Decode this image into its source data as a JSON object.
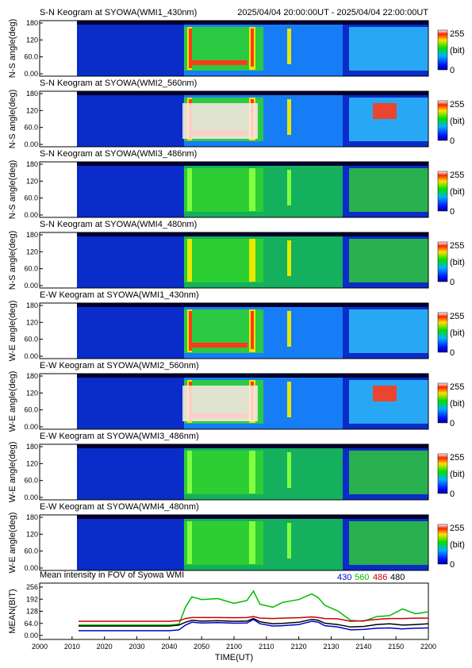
{
  "header": {
    "date_range": "2025/04/04 20:00:00UT - 2025/04/04 22:00:00UT"
  },
  "colorbar": {
    "max_label": "255",
    "unit_label": "(bit)",
    "min_label": "0"
  },
  "keograms": [
    {
      "title": "S-N Keogram at SYOWA(WMI1_430nm)",
      "ylabel": "N-S angle(deg)",
      "yticks": [
        "180",
        "120",
        "60.0",
        "0.00"
      ],
      "intensity": 0.55
    },
    {
      "title": "S-N Keogram at SYOWA(WMI2_560nm)",
      "ylabel": "N-S angle(deg)",
      "yticks": [
        "180",
        "120",
        "60.0",
        "0.00"
      ],
      "intensity": 0.85
    },
    {
      "title": "S-N Keogram at SYOWA(WMI3_486nm)",
      "ylabel": "N-S angle(deg)",
      "yticks": [
        "180",
        "120",
        "60.0",
        "0.00"
      ],
      "intensity": 0.25
    },
    {
      "title": "S-N Keogram at SYOWA(WMI4_480nm)",
      "ylabel": "N-S angle(deg)",
      "yticks": [
        "180",
        "120",
        "60.0",
        "0.00"
      ],
      "intensity": 0.35
    },
    {
      "title": "E-W Keogram at SYOWA(WMI1_430nm)",
      "ylabel": "W-E angle(deg)",
      "yticks": [
        "180",
        "120",
        "60.0",
        "0.00"
      ],
      "intensity": 0.5
    },
    {
      "title": "E-W Keogram at SYOWA(WMI2_560nm)",
      "ylabel": "W-E angle(deg)",
      "yticks": [
        "180",
        "120",
        "60.0",
        "0.00"
      ],
      "intensity": 0.85
    },
    {
      "title": "E-W Keogram at SYOWA(WMI3_486nm)",
      "ylabel": "W-E angle(deg)",
      "yticks": [
        "180",
        "120",
        "60.0",
        "0.00"
      ],
      "intensity": 0.22
    },
    {
      "title": "E-W Keogram at SYOWA(WMI4_480nm)",
      "ylabel": "W-E angle(deg)",
      "yticks": [
        "180",
        "120",
        "60.0",
        "0.00"
      ],
      "intensity": 0.3
    }
  ],
  "chart_data": {
    "type": "line",
    "title": "Mean intensity in FOV of Syowa WMI",
    "xlabel": "TIME(UT)",
    "ylabel": "MEAN(BIT)",
    "xticks": [
      "2000",
      "2010",
      "2020",
      "2030",
      "2040",
      "2050",
      "2100",
      "2110",
      "2120",
      "2130",
      "2140",
      "2150",
      "2200"
    ],
    "yticks": [
      "256",
      "192",
      "128",
      "64.0",
      "0.00"
    ],
    "ylim": [
      0,
      256
    ],
    "x_minutes": [
      12,
      20,
      30,
      40,
      43,
      45,
      47,
      50,
      55,
      60,
      64,
      66,
      68,
      72,
      75,
      80,
      84,
      86,
      88,
      92,
      96,
      100,
      104,
      108,
      112,
      116,
      120
    ],
    "series": [
      {
        "name": "430",
        "color": "#0000cc",
        "values": [
          25,
          25,
          25,
          25,
          30,
          55,
          70,
          66,
          68,
          65,
          66,
          85,
          62,
          50,
          52,
          58,
          75,
          70,
          52,
          45,
          30,
          32,
          38,
          40,
          35,
          38,
          40
        ]
      },
      {
        "name": "560",
        "color": "#00bb00",
        "values": [
          55,
          55,
          55,
          55,
          60,
          150,
          205,
          190,
          195,
          170,
          185,
          235,
          165,
          150,
          175,
          190,
          220,
          200,
          160,
          130,
          80,
          75,
          100,
          105,
          140,
          115,
          125
        ]
      },
      {
        "name": "486",
        "color": "#cc0000",
        "values": [
          75,
          75,
          75,
          75,
          78,
          90,
          95,
          95,
          95,
          94,
          95,
          100,
          92,
          90,
          92,
          94,
          98,
          95,
          90,
          88,
          75,
          78,
          85,
          90,
          90,
          92,
          92
        ]
      },
      {
        "name": "480",
        "color": "#000000",
        "values": [
          50,
          50,
          50,
          50,
          55,
          70,
          80,
          76,
          78,
          75,
          76,
          90,
          72,
          62,
          64,
          70,
          85,
          80,
          65,
          58,
          45,
          48,
          58,
          62,
          55,
          58,
          62
        ]
      }
    ]
  }
}
